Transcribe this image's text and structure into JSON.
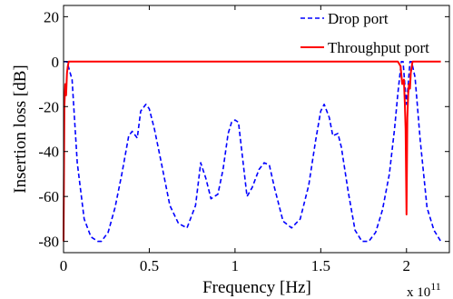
{
  "chart_data": {
    "type": "line",
    "xlabel": "Frequency [Hz]",
    "ylabel": "Insertion loss [dB]",
    "x_multiplier_label": "x 10",
    "x_multiplier_exponent": "11",
    "xlim": [
      0,
      2.25
    ],
    "ylim": [
      -85,
      25
    ],
    "x_ticks": [
      0,
      0.5,
      1,
      1.5,
      2
    ],
    "x_tick_labels": [
      "0",
      "0.5",
      "1",
      "1.5",
      "2"
    ],
    "y_ticks": [
      20,
      0,
      -20,
      -40,
      -60,
      -80
    ],
    "y_tick_labels": [
      "20",
      "0",
      "-20",
      "-40",
      "-60",
      "-80"
    ],
    "grid": false,
    "legend_position": "top-right",
    "series": [
      {
        "name": "Drop port",
        "color": "#0000ff",
        "style": "dashed",
        "x": [
          0.0,
          0.02,
          0.05,
          0.08,
          0.12,
          0.16,
          0.2,
          0.22,
          0.26,
          0.3,
          0.34,
          0.38,
          0.4,
          0.43,
          0.45,
          0.48,
          0.5,
          0.53,
          0.57,
          0.62,
          0.67,
          0.72,
          0.77,
          0.8,
          0.83,
          0.86,
          0.9,
          0.93,
          0.96,
          0.98,
          1.0,
          1.02,
          1.04,
          1.07,
          1.1,
          1.14,
          1.17,
          1.2,
          1.23,
          1.28,
          1.33,
          1.38,
          1.43,
          1.47,
          1.5,
          1.52,
          1.55,
          1.57,
          1.6,
          1.62,
          1.66,
          1.7,
          1.74,
          1.78,
          1.82,
          1.86,
          1.9,
          1.93,
          1.95,
          1.97,
          1.98,
          1.99,
          2.0,
          2.01,
          2.02,
          2.03,
          2.05,
          2.08,
          2.12,
          2.16,
          2.2
        ],
        "y": [
          0,
          0,
          -8,
          -45,
          -70,
          -78,
          -80,
          -80,
          -76,
          -65,
          -50,
          -33,
          -31,
          -34,
          -22,
          -19,
          -21,
          -30,
          -45,
          -64,
          -72,
          -74,
          -64,
          -45,
          -52,
          -61,
          -59,
          -48,
          -32,
          -27,
          -26,
          -27,
          -40,
          -60,
          -56,
          -48,
          -45,
          -46,
          -56,
          -71,
          -74,
          -70,
          -55,
          -35,
          -22,
          -19,
          -25,
          -33,
          -32,
          -38,
          -58,
          -75,
          -80,
          -80,
          -76,
          -66,
          -50,
          -30,
          -14,
          0,
          0,
          -10,
          -19,
          -10,
          0,
          0,
          -7,
          -35,
          -65,
          -75,
          -80
        ]
      },
      {
        "name": "Throughput port",
        "color": "#ff0000",
        "style": "solid",
        "x": [
          0.0,
          0.005,
          0.01,
          0.015,
          0.02,
          0.025,
          0.03,
          0.035,
          0.05,
          0.5,
          1.0,
          1.5,
          1.95,
          1.965,
          1.975,
          1.985,
          1.99,
          1.995,
          2.0,
          2.005,
          2.01,
          2.015,
          2.02,
          2.025,
          2.035,
          2.05,
          2.1,
          2.2
        ],
        "y": [
          -80,
          -20,
          -10,
          -15,
          -5,
          -2,
          0,
          0,
          0,
          0,
          0,
          0,
          0,
          -2,
          -10,
          -8,
          -18,
          -30,
          -68,
          -25,
          -14,
          -10,
          -12,
          -5,
          0,
          0,
          0,
          0
        ]
      }
    ]
  }
}
